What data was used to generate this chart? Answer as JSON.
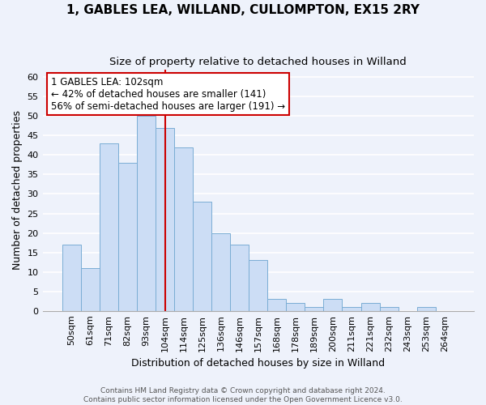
{
  "title": "1, GABLES LEA, WILLAND, CULLOMPTON, EX15 2RY",
  "subtitle": "Size of property relative to detached houses in Willand",
  "xlabel": "Distribution of detached houses by size in Willand",
  "ylabel": "Number of detached properties",
  "categories": [
    "50sqm",
    "61sqm",
    "71sqm",
    "82sqm",
    "93sqm",
    "104sqm",
    "114sqm",
    "125sqm",
    "136sqm",
    "146sqm",
    "157sqm",
    "168sqm",
    "178sqm",
    "189sqm",
    "200sqm",
    "211sqm",
    "221sqm",
    "232sqm",
    "243sqm",
    "253sqm",
    "264sqm"
  ],
  "values": [
    17,
    11,
    43,
    38,
    50,
    47,
    42,
    28,
    20,
    17,
    13,
    3,
    2,
    1,
    3,
    1,
    2,
    1,
    0,
    1,
    0
  ],
  "bar_color": "#ccddf5",
  "bar_edge_color": "#7aadd4",
  "marker_index": 5,
  "ylim": [
    0,
    62
  ],
  "yticks": [
    0,
    5,
    10,
    15,
    20,
    25,
    30,
    35,
    40,
    45,
    50,
    55,
    60
  ],
  "annotation_title": "1 GABLES LEA: 102sqm",
  "annotation_line1": "← 42% of detached houses are smaller (141)",
  "annotation_line2": "56% of semi-detached houses are larger (191) →",
  "red_line_color": "#cc0000",
  "annotation_box_color": "#ffffff",
  "annotation_box_edge": "#cc0000",
  "footer1": "Contains HM Land Registry data © Crown copyright and database right 2024.",
  "footer2": "Contains public sector information licensed under the Open Government Licence v3.0.",
  "bg_color": "#eef2fb",
  "plot_bg_color": "#eef2fb",
  "grid_color": "#ffffff",
  "title_fontsize": 11,
  "subtitle_fontsize": 9.5,
  "axis_label_fontsize": 9,
  "tick_fontsize": 8,
  "annotation_fontsize": 8.5
}
